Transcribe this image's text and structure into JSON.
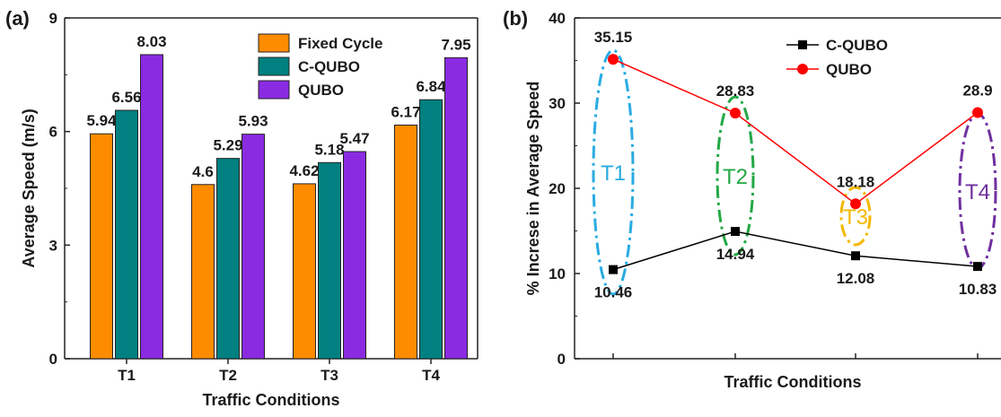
{
  "chart_data": [
    {
      "panel": "(a)",
      "type": "bar",
      "title": "",
      "xlabel": "Traffic Conditions",
      "ylabel": "Average Speed (m/s)",
      "ylim": [
        0,
        9
      ],
      "yticks": [
        "0",
        "3",
        "6",
        "9"
      ],
      "categories": [
        "T1",
        "T2",
        "T3",
        "T4"
      ],
      "series": [
        {
          "name": "Fixed Cycle",
          "color": "#ff8c00",
          "values": [
            5.94,
            4.6,
            4.62,
            6.17
          ],
          "labels": [
            "5.94",
            "4.6",
            "4.62",
            "6.17"
          ]
        },
        {
          "name": "C-QUBO",
          "color": "#008080",
          "values": [
            6.56,
            5.29,
            5.18,
            6.84
          ],
          "labels": [
            "6.56",
            "5.29",
            "5.18",
            "6.84"
          ]
        },
        {
          "name": "QUBO",
          "color": "#8a2be2",
          "values": [
            8.03,
            5.93,
            5.47,
            7.95
          ],
          "labels": [
            "8.03",
            "5.93",
            "5.47",
            "7.95"
          ]
        }
      ],
      "legend_position": "top-right",
      "grid": false
    },
    {
      "panel": "(b)",
      "type": "line",
      "title": "",
      "xlabel": "Traffic Conditions",
      "ylabel": "% Increse in Average Speed",
      "ylim": [
        0,
        40
      ],
      "yticks": [
        "0",
        "10",
        "20",
        "30",
        "40"
      ],
      "categories": [
        "T1",
        "T2",
        "T3",
        "T4"
      ],
      "series": [
        {
          "name": "C-QUBO",
          "color": "#000000",
          "marker": "square",
          "values": [
            10.46,
            14.94,
            12.08,
            10.83
          ],
          "labels": [
            "10.46",
            "14.94",
            "12.08",
            "10.83"
          ]
        },
        {
          "name": "QUBO",
          "color": "#ff0000",
          "marker": "circle",
          "values": [
            35.15,
            28.83,
            18.18,
            28.9
          ],
          "labels": [
            "35.15",
            "28.83",
            "18.18",
            "28.9"
          ]
        }
      ],
      "annotations": [
        {
          "text": "T1",
          "color": "#29abe2"
        },
        {
          "text": "T2",
          "color": "#22a845"
        },
        {
          "text": "T3",
          "color": "#f5b800"
        },
        {
          "text": "T4",
          "color": "#7030a0"
        }
      ],
      "legend_position": "top-right",
      "grid": false
    }
  ]
}
